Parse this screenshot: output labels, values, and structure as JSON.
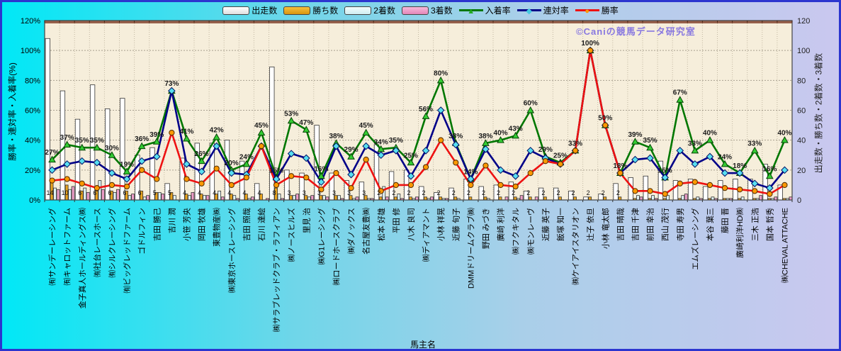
{
  "watermark": "©Caniの競馬データ研究室",
  "axes": {
    "left_title": "勝率・連対率・入着率(%)",
    "right_title": "出走数・勝ち数・2着数・3着数",
    "x_title": "馬主名",
    "left_ticks": [
      "0%",
      "20%",
      "40%",
      "60%",
      "80%",
      "100%",
      "120%"
    ],
    "right_ticks": [
      "0",
      "20",
      "40",
      "60",
      "80",
      "100",
      "120"
    ],
    "ylim_left": [
      0,
      120
    ],
    "ylim_right": [
      0,
      120
    ]
  },
  "legend": {
    "bars": [
      {
        "label": "出走数",
        "fill": "#ffffff"
      },
      {
        "label": "勝ち数",
        "fill": "#e8a420"
      },
      {
        "label": "2着数",
        "fill": "#e0f2f5"
      },
      {
        "label": "3着数",
        "fill": "#ee9fc9"
      }
    ],
    "lines": [
      {
        "label": "入着率",
        "color": "#007700",
        "marker": "triangle",
        "marker_fill": "#33cc33",
        "glyph": "▲"
      },
      {
        "label": "連対率",
        "color": "#000088",
        "marker": "diamond",
        "marker_fill": "#58dff0",
        "glyph": "◆"
      },
      {
        "label": "勝率",
        "color": "#ee1111",
        "marker": "circle",
        "marker_fill": "#ff9900",
        "glyph": "●"
      }
    ]
  },
  "chart_data": {
    "type": "bar",
    "subtype": "bar-line-combo",
    "title": "",
    "xlabel": "馬主名",
    "ylabel_left": "勝率・連対率・入着率(%)",
    "ylabel_right": "出走数・勝ち数・2着数・3着数",
    "ylim": [
      0,
      120
    ],
    "grid": true,
    "legend_position": "top",
    "categories": [
      "㈲サンデーレーシング",
      "㈲キャロットファーム",
      "金子真人ホールディングス㈱",
      "㈲社台レースホース",
      "㈲シルクレーシング",
      "㈲ビッグレッドファーム",
      "ゴドルフィン",
      "吉田 勝己",
      "吉川 潤",
      "小笹 芳央",
      "岡田 牧雄",
      "東豊物産㈱",
      "㈱東京ホースレーシング",
      "吉田 照哉",
      "石川 達絵",
      "㈱サラブレッドクラブ・ラフィアン",
      "㈱ノースヒルズ",
      "里見 治",
      "㈱G1レーシング",
      "㈱ロードホースクラブ",
      "㈱ダノックス",
      "名古屋友豊㈱",
      "松本 好雄",
      "平田 修",
      "八木 良司",
      "㈱ディアマント",
      "小林 祥晃",
      "近藤 旬子",
      "DMMドリームクラブ㈱",
      "野田 みづき",
      "廣崎 利洋",
      "㈱フクキタル",
      "㈱モンレーヴ",
      "近藤 英子",
      "飯塚 知一",
      "㈱ケイアイスタリオン",
      "辻子 依旦",
      "小林 竜太郎",
      "吉田 晴哉",
      "吉田 千津",
      "前田 幸治",
      "西山 茂行",
      "寺田 寿男",
      "エムズレーシング",
      "本谷 葉三",
      "藤田 晋",
      "廣崎利洋HD㈱",
      "三木 正浩",
      "国本 哲秀",
      "㈱CHEVAL ATTACHE"
    ],
    "bar_series": [
      {
        "name": "出走数",
        "axis": "right",
        "fill": "#ffffff",
        "values": [
          108,
          73,
          54,
          77,
          61,
          68,
          30,
          35,
          11,
          28,
          38,
          38,
          40,
          26,
          11,
          89,
          20,
          18,
          50,
          18,
          13,
          12,
          37,
          19,
          20,
          9,
          5,
          8,
          14,
          9,
          10,
          12,
          6,
          8,
          8,
          6,
          2,
          4,
          11,
          15,
          16,
          26,
          13,
          14,
          9,
          13,
          14,
          14,
          24,
          10
        ]
      },
      {
        "name": "勝ち数",
        "axis": "right",
        "fill": "#e8a420",
        "values": [
          14,
          10,
          6,
          6,
          6,
          6,
          6,
          5,
          5,
          4,
          4,
          4,
          4,
          4,
          4,
          8,
          3,
          3,
          3,
          3,
          3,
          3,
          2,
          2,
          2,
          2,
          2,
          2,
          2,
          2,
          2,
          2,
          2,
          2,
          2,
          2,
          2,
          2,
          2,
          1,
          1,
          1,
          1,
          1,
          1,
          1,
          1,
          1,
          1,
          1
        ]
      },
      {
        "name": "2着数",
        "axis": "right",
        "fill": "#e0f2f5",
        "values": [
          8,
          7,
          8,
          13,
          5,
          3,
          2,
          5,
          3,
          3,
          3,
          6,
          3,
          1,
          0,
          4,
          3,
          2,
          3,
          3,
          1,
          1,
          9,
          4,
          1,
          1,
          1,
          1,
          0,
          1,
          0,
          1,
          0,
          0,
          0,
          0,
          0,
          0,
          0,
          3,
          3,
          3,
          3,
          2,
          2,
          1,
          2,
          1,
          1,
          1
        ]
      },
      {
        "name": "3着数",
        "axis": "right",
        "fill": "#ee9fc9",
        "values": [
          7,
          9,
          5,
          7,
          7,
          4,
          3,
          4,
          0,
          5,
          3,
          2,
          1,
          2,
          1,
          1,
          4,
          3,
          2,
          1,
          2,
          1,
          2,
          1,
          2,
          2,
          1,
          0,
          0,
          0,
          2,
          3,
          2,
          0,
          0,
          0,
          0,
          0,
          0,
          2,
          1,
          0,
          4,
          1,
          1,
          1,
          0,
          3,
          2,
          2
        ]
      }
    ],
    "line_series": [
      {
        "name": "入着率",
        "axis": "left",
        "color": "#007700",
        "marker": "triangle",
        "values": [
          27,
          37,
          35,
          35,
          30,
          19,
          36,
          39,
          73,
          41,
          26,
          42,
          20,
          24,
          45,
          15,
          53,
          47,
          16,
          38,
          29,
          45,
          34,
          35,
          25,
          56,
          80,
          38,
          14,
          38,
          40,
          43,
          60,
          29,
          25,
          33,
          100,
          50,
          18,
          39,
          35,
          15,
          67,
          33,
          40,
          24,
          18,
          33,
          16,
          40
        ]
      },
      {
        "name": "連対率",
        "axis": "left",
        "color": "#000088",
        "marker": "diamond",
        "values": [
          20,
          24,
          26,
          25,
          18,
          14,
          26,
          29,
          73,
          24,
          19,
          36,
          18,
          17,
          36,
          14,
          31,
          28,
          12,
          36,
          17,
          36,
          30,
          33,
          16,
          33,
          60,
          37,
          14,
          34,
          20,
          16,
          33,
          28,
          24,
          33,
          100,
          50,
          18,
          27,
          28,
          15,
          33,
          24,
          29,
          18,
          18,
          11,
          8,
          20
        ]
      },
      {
        "name": "勝率",
        "axis": "left",
        "color": "#ee1111",
        "marker": "circle",
        "values": [
          13,
          14,
          11,
          8,
          10,
          9,
          20,
          14,
          45,
          14,
          11,
          21,
          10,
          15,
          36,
          10,
          16,
          15,
          7,
          18,
          8,
          27,
          6,
          10,
          10,
          22,
          40,
          25,
          10,
          23,
          10,
          9,
          18,
          26,
          24,
          33,
          100,
          50,
          18,
          6,
          6,
          4,
          11,
          12,
          10,
          8,
          7,
          6,
          4,
          10
        ]
      }
    ],
    "point_labels": [
      "27%",
      "37%",
      "35%",
      "35%",
      "30%",
      "19%",
      "36%",
      "39%",
      "73%",
      "41%",
      "26%",
      "42%",
      "20%",
      "24%",
      "45%",
      "15%",
      "53%",
      "47%",
      "16%",
      "38%",
      "29%",
      "45%",
      "34%",
      "35%",
      "25%",
      "56%",
      "80%",
      "38%",
      "14%",
      "38%",
      "40%",
      "43%",
      "60%",
      "29%",
      "25%",
      "33%",
      "100%",
      "50%",
      "18%",
      "39%",
      "35%",
      "15%",
      "67%",
      "33%",
      "40%",
      "24%",
      "18%",
      "33%",
      "16%",
      "40%"
    ],
    "win_count_labels": [
      14,
      10,
      6,
      6,
      6,
      6,
      6,
      5,
      5,
      4,
      4,
      4,
      4,
      4,
      4,
      8,
      3,
      3,
      3,
      3,
      3,
      3,
      2,
      2,
      2,
      2,
      2,
      2,
      2,
      2,
      2,
      2,
      2,
      2,
      2,
      2,
      2,
      2,
      2,
      null,
      null,
      null,
      null,
      null,
      null,
      null,
      null,
      null,
      null,
      null
    ]
  }
}
